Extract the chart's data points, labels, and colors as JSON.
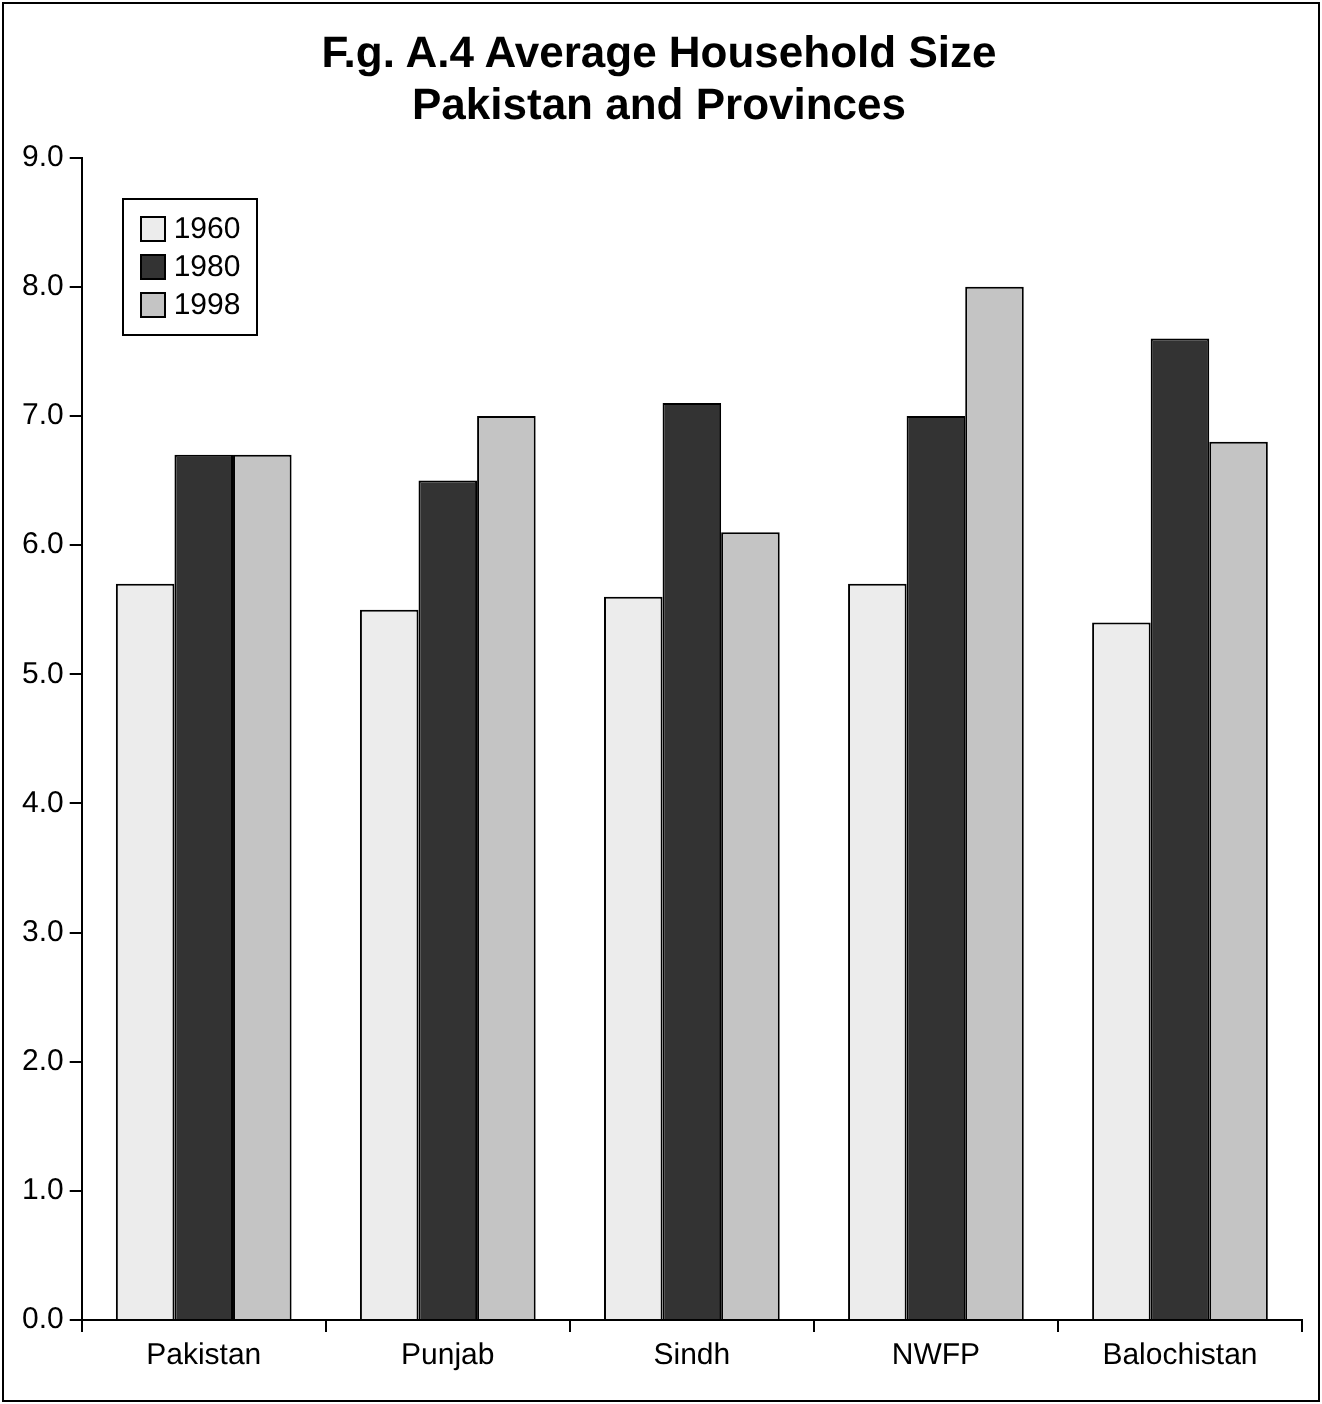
{
  "chart_data": {
    "type": "bar",
    "title": "F.g. A.4 Average Household Size\nPakistan and Provinces",
    "categories": [
      "Pakistan",
      "Punjab",
      "Sindh",
      "NWFP",
      "Balochistan"
    ],
    "series": [
      {
        "name": "1960",
        "color": "#ececec",
        "values": [
          5.7,
          5.5,
          5.6,
          5.7,
          5.4
        ]
      },
      {
        "name": "1980",
        "color": "#333333",
        "values": [
          6.7,
          6.5,
          7.1,
          7.0,
          7.6
        ]
      },
      {
        "name": "1998",
        "color": "#c4c4c4",
        "values": [
          6.7,
          7.0,
          6.1,
          8.0,
          6.8
        ]
      }
    ],
    "ylim": [
      0,
      9
    ],
    "yticks": [
      {
        "value": 0,
        "label": "0.0"
      },
      {
        "value": 1,
        "label": "1.0"
      },
      {
        "value": 2,
        "label": "2.0"
      },
      {
        "value": 3,
        "label": "3.0"
      },
      {
        "value": 4,
        "label": "4.0"
      },
      {
        "value": 5,
        "label": "5.0"
      },
      {
        "value": 6,
        "label": "6.0"
      },
      {
        "value": 7,
        "label": "7.0"
      },
      {
        "value": 8,
        "label": "8.0"
      },
      {
        "value": 9,
        "label": "9.0"
      }
    ],
    "legend": "top left"
  }
}
